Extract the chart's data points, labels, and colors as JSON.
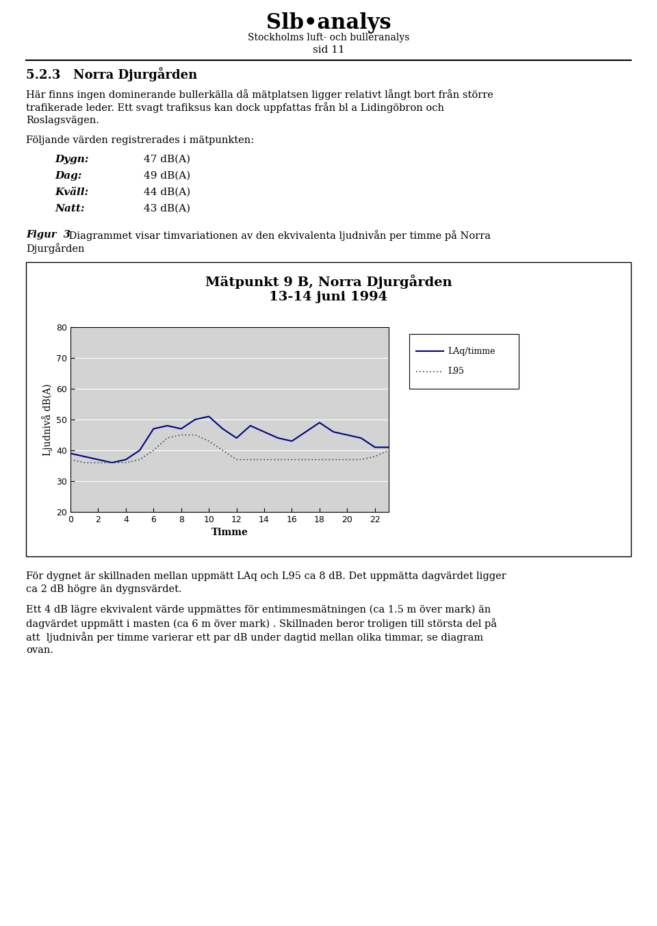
{
  "page_title": "Slb•analys",
  "page_subtitle": "Stockholms luft- och bulleranalys",
  "page_number": "sid 11",
  "section_title": "5.2.3   Norra Djurgården",
  "measurement_intro": "Följande värden registrerades i mätpunkten:",
  "measurements": [
    {
      "label": "Dygn:",
      "value": "47 dB(A)"
    },
    {
      "label": "Dag:",
      "value": "49 dB(A)"
    },
    {
      "label": "Kväll:",
      "value": "44 dB(A)"
    },
    {
      "label": "Natt:",
      "value": "43 dB(A)"
    }
  ],
  "chart_title_line1": "Mätpunkt 9 B, Norra Djurgården",
  "chart_title_line2": "13-14 juni 1994",
  "xlabel": "Timme",
  "ylabel": "Ljudnivå dB(A)",
  "ylim": [
    20,
    80
  ],
  "yticks": [
    20,
    30,
    40,
    50,
    60,
    70,
    80
  ],
  "xticks": [
    0,
    2,
    4,
    6,
    8,
    10,
    12,
    14,
    16,
    18,
    20,
    22
  ],
  "legend_label1": "LAq/timme",
  "legend_label2": "L95",
  "laq_color": "#000080",
  "l95_color": "#404040",
  "plot_bg_color": "#d3d3d3",
  "LAq_hours": [
    0,
    1,
    2,
    3,
    4,
    5,
    6,
    7,
    8,
    9,
    10,
    11,
    12,
    13,
    14,
    15,
    16,
    17,
    18,
    19,
    20,
    21,
    22,
    23
  ],
  "LAq_values": [
    39,
    38,
    37,
    36,
    37,
    40,
    47,
    48,
    47,
    50,
    51,
    47,
    44,
    48,
    46,
    44,
    43,
    46,
    49,
    46,
    45,
    44,
    41,
    41
  ],
  "L95_hours": [
    0,
    1,
    2,
    3,
    4,
    5,
    6,
    7,
    8,
    9,
    10,
    11,
    12,
    13,
    14,
    15,
    16,
    17,
    18,
    19,
    20,
    21,
    22,
    23
  ],
  "L95_values": [
    37,
    36,
    36,
    36,
    36,
    37,
    40,
    44,
    45,
    45,
    43,
    40,
    37,
    37,
    37,
    37,
    37,
    37,
    37,
    37,
    37,
    37,
    38,
    40
  ],
  "p1_line1": "Här finns ingen dominerande bullerkälla då mätplatsen ligger relativt långt bort från större",
  "p1_line2": "trafikerade leder. Ett svagt trafiksus kan dock uppfattas från bl a Lidingöbron och",
  "p1_line3": "Roslagsvägen.",
  "figur_bold": "Figur  3",
  "figur_rest": " Diagrammet visar timvariationen av den ekvivalenta ljudnivån per timme på Norra",
  "figur_line2": "Djurgården",
  "pb1_line1": "För dygnet är skillnaden mellan uppmätt LAq och L95 ca 8 dB. Det uppmätta dagvärdet ligger",
  "pb1_line2": "ca 2 dB högre än dygnsvärdet.",
  "pb2_line1": "Ett 4 dB lägre ekvivalent värde uppmättes för entimmesmätningen (ca 1.5 m över mark) än",
  "pb2_line2": "dagvärdet uppmätt i masten (ca 6 m över mark) . Skillnaden beror troligen till största del på",
  "pb2_line3": "att  ljudnivån per timme varierar ett par dB under dagtid mellan olika timmar, se diagram",
  "pb2_line4": "ovan."
}
